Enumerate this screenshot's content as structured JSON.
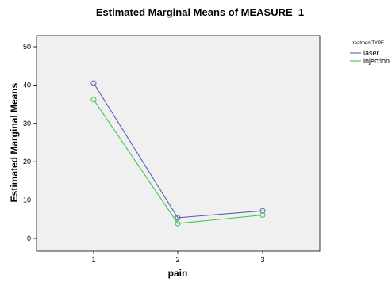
{
  "chart_data": {
    "type": "line",
    "title": "Estimated Marginal Means of MEASURE_1",
    "xlabel": "pain",
    "ylabel": "Estimated Marginal Means",
    "categories": [
      "1",
      "2",
      "3"
    ],
    "ylim": [
      0,
      50
    ],
    "yticks": [
      "0",
      "10",
      "20",
      "30",
      "40",
      "50"
    ],
    "grid": false,
    "legend": {
      "title": "treatmentTYPE",
      "placement": "right"
    },
    "series": [
      {
        "name": "laser",
        "values": [
          40.5,
          5.4,
          7.2
        ],
        "color": "#5a61b3"
      },
      {
        "name": "injection",
        "values": [
          36.2,
          3.9,
          6.1
        ],
        "color": "#3cc84a"
      }
    ],
    "plot_background": "#f0f0f0"
  }
}
